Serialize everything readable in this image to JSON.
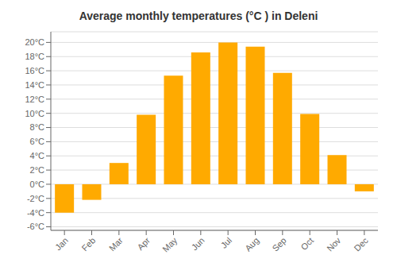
{
  "chart_data": {
    "type": "bar",
    "title": "Average monthly temperatures (°C ) in Deleni",
    "categories": [
      "Jan",
      "Feb",
      "Mar",
      "Apr",
      "May",
      "Jun",
      "Jul",
      "Aug",
      "Sep",
      "Oct",
      "Nov",
      "Dec"
    ],
    "values": [
      -4.0,
      -2.2,
      3.0,
      9.8,
      15.3,
      18.6,
      20.0,
      19.4,
      15.7,
      9.9,
      4.1,
      -1.0
    ],
    "color": "#FFAA00",
    "ylim": [
      -6.5,
      21.5
    ],
    "yticks": [
      {
        "value": -6,
        "label": "-6°C"
      },
      {
        "value": -4,
        "label": "-4°C"
      },
      {
        "value": -2,
        "label": "-2°C"
      },
      {
        "value": 0,
        "label": "0°C"
      },
      {
        "value": 2,
        "label": "2°C"
      },
      {
        "value": 4,
        "label": "4°C"
      },
      {
        "value": 6,
        "label": "6°C"
      },
      {
        "value": 8,
        "label": "8°C"
      },
      {
        "value": 10,
        "label": "10°C"
      },
      {
        "value": 12,
        "label": "12°C"
      },
      {
        "value": 14,
        "label": "14°C"
      },
      {
        "value": 16,
        "label": "16°C"
      },
      {
        "value": 18,
        "label": "18°C"
      },
      {
        "value": 20,
        "label": "20°C"
      }
    ],
    "grid": true
  }
}
